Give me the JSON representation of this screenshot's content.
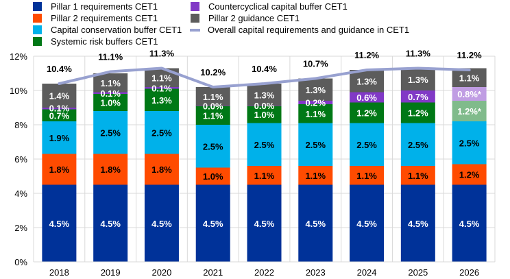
{
  "chart_data": {
    "type": "bar",
    "stacked": true,
    "title": "",
    "xlabel": "",
    "ylabel": "",
    "ylim": [
      0,
      12
    ],
    "yticks": [
      "0%",
      "2%",
      "4%",
      "6%",
      "8%",
      "10%",
      "12%"
    ],
    "ytick_values": [
      0,
      2,
      4,
      6,
      8,
      10,
      12
    ],
    "grid": true,
    "legend_position": "top",
    "categories": [
      "2018",
      "2019",
      "2020",
      "2021",
      "2022",
      "2023",
      "2024",
      "2025",
      "2026"
    ],
    "series": [
      {
        "name": "Pillar 1 requirements CET1",
        "color": "#003299",
        "label_color": "#ffffff",
        "values": [
          4.5,
          4.5,
          4.5,
          4.5,
          4.5,
          4.5,
          4.5,
          4.5,
          4.5
        ],
        "labels": [
          "4.5%",
          "4.5%",
          "4.5%",
          "4.5%",
          "4.5%",
          "4.5%",
          "4.5%",
          "4.5%",
          "4.5%"
        ]
      },
      {
        "name": "Pillar 2 requirements CET1",
        "color": "#ff4b00",
        "label_color": "#000000",
        "values": [
          1.8,
          1.8,
          1.8,
          1.0,
          1.1,
          1.1,
          1.1,
          1.1,
          1.2
        ],
        "labels": [
          "1.8%",
          "1.8%",
          "1.8%",
          "1.0%",
          "1.1%",
          "1.1%",
          "1.1%",
          "1.1%",
          "1.2%"
        ]
      },
      {
        "name": "Capital conservation buffer CET1",
        "color": "#00b1ea",
        "label_color": "#000000",
        "values": [
          1.9,
          2.5,
          2.5,
          2.5,
          2.5,
          2.5,
          2.5,
          2.5,
          2.5
        ],
        "labels": [
          "1.9%",
          "2.5%",
          "2.5%",
          "2.5%",
          "2.5%",
          "2.5%",
          "2.5%",
          "2.5%",
          "2.5%"
        ]
      },
      {
        "name": "Systemic risk buffers CET1",
        "color": "#007816",
        "label_color": "#ffffff",
        "point_colors": {
          "8": "#80bb8b"
        },
        "values": [
          0.7,
          1.0,
          1.3,
          1.1,
          1.0,
          1.1,
          1.2,
          1.2,
          1.2
        ],
        "labels": [
          "0.7%",
          "1.0%",
          "1.3%",
          "1.1%",
          "1.0%",
          "1.1%",
          "1.2%",
          "1.2%",
          "1.2%*"
        ]
      },
      {
        "name": "Countercyclical capital buffer CET1",
        "color": "#8139c6",
        "label_color": "#ffffff",
        "point_colors": {
          "8": "#c09de3"
        },
        "values": [
          0.1,
          0.1,
          0.1,
          0.0,
          0.0,
          0.2,
          0.6,
          0.7,
          0.8
        ],
        "labels": [
          "0.1%",
          "0.1%",
          "0.1%",
          "0.0%",
          "0.0%",
          "0.2%",
          "0.6%",
          "0.7%",
          "0.8%*"
        ]
      },
      {
        "name": "Pillar 2 guidance CET1",
        "color": "#5c5c5c",
        "label_color": "#ffffff",
        "values": [
          1.4,
          1.1,
          1.1,
          1.1,
          1.3,
          1.3,
          1.3,
          1.3,
          1.1
        ],
        "labels": [
          "1.4%",
          "1.1%",
          "1.1%",
          "1.1%",
          "1.3%",
          "1.3%",
          "1.3%",
          "1.3%",
          "1.1%"
        ]
      }
    ],
    "line_series": {
      "name": "Overall capital requirements and guidance in CET1",
      "color": "#98a1d0",
      "values": [
        10.4,
        11.1,
        11.3,
        10.2,
        10.4,
        10.7,
        11.2,
        11.3,
        11.2
      ],
      "labels": [
        "10.4%",
        "11.1%",
        "11.3%",
        "10.2%",
        "10.4%",
        "10.7%",
        "11.2%",
        "11.3%",
        "11.2%"
      ]
    }
  }
}
